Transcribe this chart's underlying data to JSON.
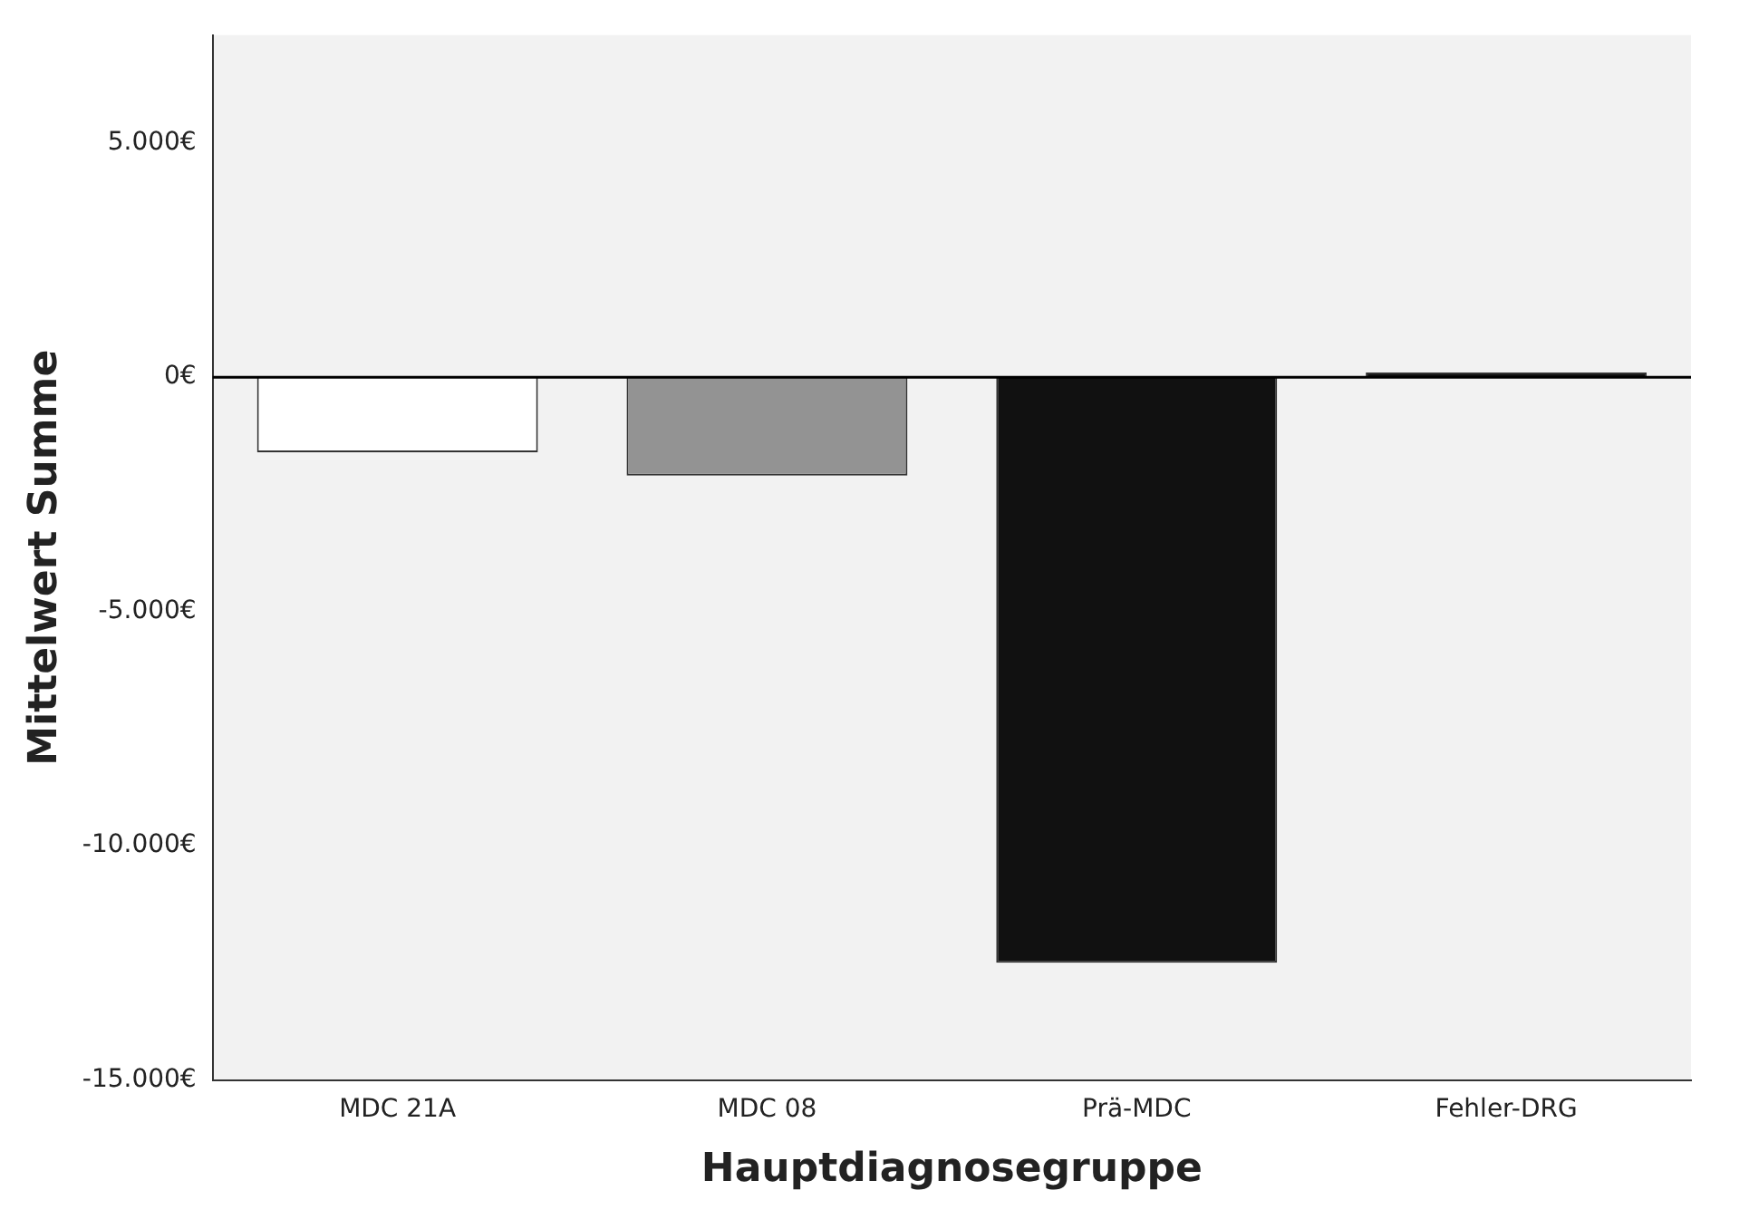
{
  "chart_data": {
    "type": "bar",
    "xlabel": "Hauptdiagnosegruppe",
    "ylabel": "Mittelwert Summe",
    "categories": [
      "MDC 21A",
      "MDC 08",
      "Prä-MDC",
      "Fehler-DRG"
    ],
    "values": [
      -1600,
      -2100,
      -12500,
      100
    ],
    "colors": [
      "#ffffff",
      "#939393",
      "#111111",
      "#111111"
    ],
    "ylim": [
      -15000,
      7300
    ],
    "yticks": [
      {
        "value": -15000,
        "label": "-15.000€"
      },
      {
        "value": -10000,
        "label": "-10.000€"
      },
      {
        "value": -5000,
        "label": "-5.000€"
      },
      {
        "value": 0,
        "label": "0€"
      },
      {
        "value": 5000,
        "label": "5.000€"
      }
    ],
    "ref_lines": [
      {
        "axis": "y",
        "value": 0,
        "color": "#000000"
      }
    ],
    "grid": false,
    "legend": false
  }
}
